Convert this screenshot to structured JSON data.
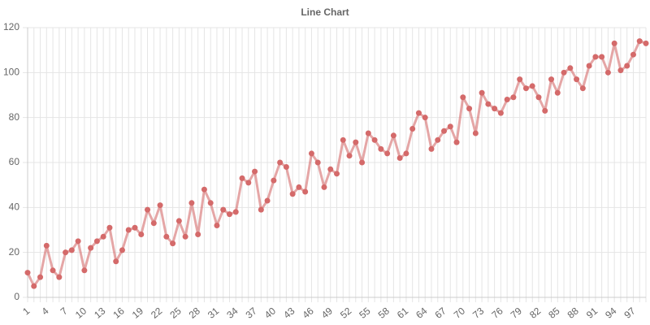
{
  "chart_data": {
    "type": "line",
    "title": "Line Chart",
    "categories": [
      "1",
      null,
      null,
      "4",
      null,
      null,
      "7",
      null,
      null,
      "10",
      null,
      null,
      "13",
      null,
      null,
      "16",
      null,
      null,
      "19",
      null,
      null,
      "22",
      null,
      null,
      "25",
      null,
      null,
      "28",
      null,
      null,
      "31",
      null,
      null,
      "34",
      null,
      null,
      "37",
      null,
      null,
      "40",
      null,
      null,
      "43",
      null,
      null,
      "46",
      null,
      null,
      "49",
      null,
      null,
      "52",
      null,
      null,
      "55",
      null,
      null,
      "58",
      null,
      null,
      "61",
      null,
      null,
      "64",
      null,
      null,
      "67",
      null,
      null,
      "70",
      null,
      null,
      "73",
      null,
      null,
      "76",
      null,
      null,
      "79",
      null,
      null,
      "82",
      null,
      null,
      "85",
      null,
      null,
      "88",
      null,
      null,
      "91",
      null,
      null,
      "94",
      null,
      null,
      "97",
      null,
      null
    ],
    "values": [
      11,
      5,
      9,
      23,
      12,
      9,
      20,
      21,
      25,
      12,
      22,
      25,
      27,
      31,
      16,
      21,
      30,
      31,
      28,
      39,
      33,
      41,
      27,
      24,
      34,
      27,
      42,
      28,
      48,
      42,
      32,
      39,
      37,
      38,
      53,
      51,
      56,
      39,
      43,
      52,
      60,
      58,
      46,
      49,
      47,
      64,
      60,
      49,
      57,
      55,
      70,
      63,
      69,
      60,
      73,
      70,
      66,
      64,
      72,
      62,
      64,
      75,
      82,
      80,
      66,
      70,
      74,
      76,
      69,
      89,
      84,
      73,
      91,
      86,
      84,
      82,
      88,
      89,
      97,
      93,
      94,
      89,
      83,
      97,
      91,
      100,
      102,
      97,
      93,
      103,
      107,
      107,
      100,
      113,
      101,
      103,
      108,
      114,
      113
    ],
    "color": "#d46a6a",
    "ylim": [
      0,
      120
    ],
    "yticks": [
      0,
      20,
      40,
      60,
      80,
      100,
      120
    ],
    "grid": true
  }
}
